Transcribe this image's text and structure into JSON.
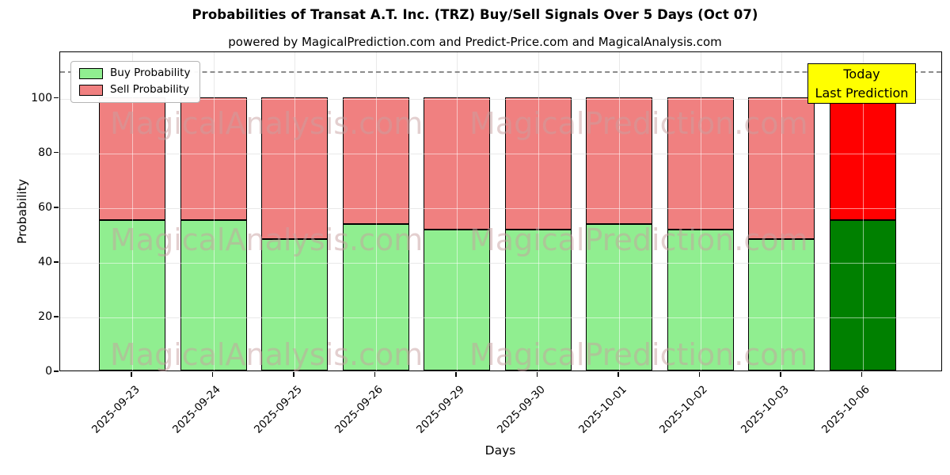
{
  "title": "Probabilities of Transat A.T. Inc. (TRZ) Buy/Sell Signals Over 5 Days (Oct 07)",
  "subtitle": "powered by MagicalPrediction.com and Predict-Price.com and MagicalAnalysis.com",
  "axes": {
    "x_label": "Days",
    "y_label": "Probability",
    "y_ticks": [
      0,
      20,
      40,
      60,
      80,
      100
    ],
    "dashed_line_y": 110
  },
  "legend": {
    "items": [
      {
        "label": "Buy Probability",
        "color": "#90EE90"
      },
      {
        "label": "Sell Probability",
        "color": "#F08080"
      }
    ]
  },
  "annotation": {
    "line1": "Today",
    "line2": "Last Prediction",
    "bg_color": "#FFFF00"
  },
  "watermarks": {
    "analysis_text": "MagicalAnalysis.com",
    "prediction_text": "MagicalPrediction.com"
  },
  "chart_data": {
    "type": "bar",
    "stacked": true,
    "title": "Probabilities of Transat A.T. Inc. (TRZ) Buy/Sell Signals Over 5 Days (Oct 07)",
    "xlabel": "Days",
    "ylabel": "Probability",
    "ylim": [
      0,
      117
    ],
    "grid": true,
    "legend_position": "upper left",
    "dashed_reference_line": 110,
    "categories": [
      "2025-09-23",
      "2025-09-24",
      "2025-09-25",
      "2025-09-26",
      "2025-09-29",
      "2025-09-30",
      "2025-10-01",
      "2025-10-02",
      "2025-10-03",
      "2025-10-06"
    ],
    "series": [
      {
        "name": "Buy Probability",
        "color": "#90EE90",
        "highlight_last_color": "#008000",
        "values": [
          55,
          55,
          48,
          53.5,
          51.5,
          51.5,
          53.5,
          51.5,
          48,
          55
        ]
      },
      {
        "name": "Sell Probability",
        "color": "#F08080",
        "highlight_last_color": "#FF0000",
        "values": [
          45,
          45,
          52,
          46.5,
          48.5,
          48.5,
          46.5,
          48.5,
          52,
          45
        ]
      }
    ],
    "annotation_on_last_bar": [
      "Today",
      "Last Prediction"
    ]
  }
}
